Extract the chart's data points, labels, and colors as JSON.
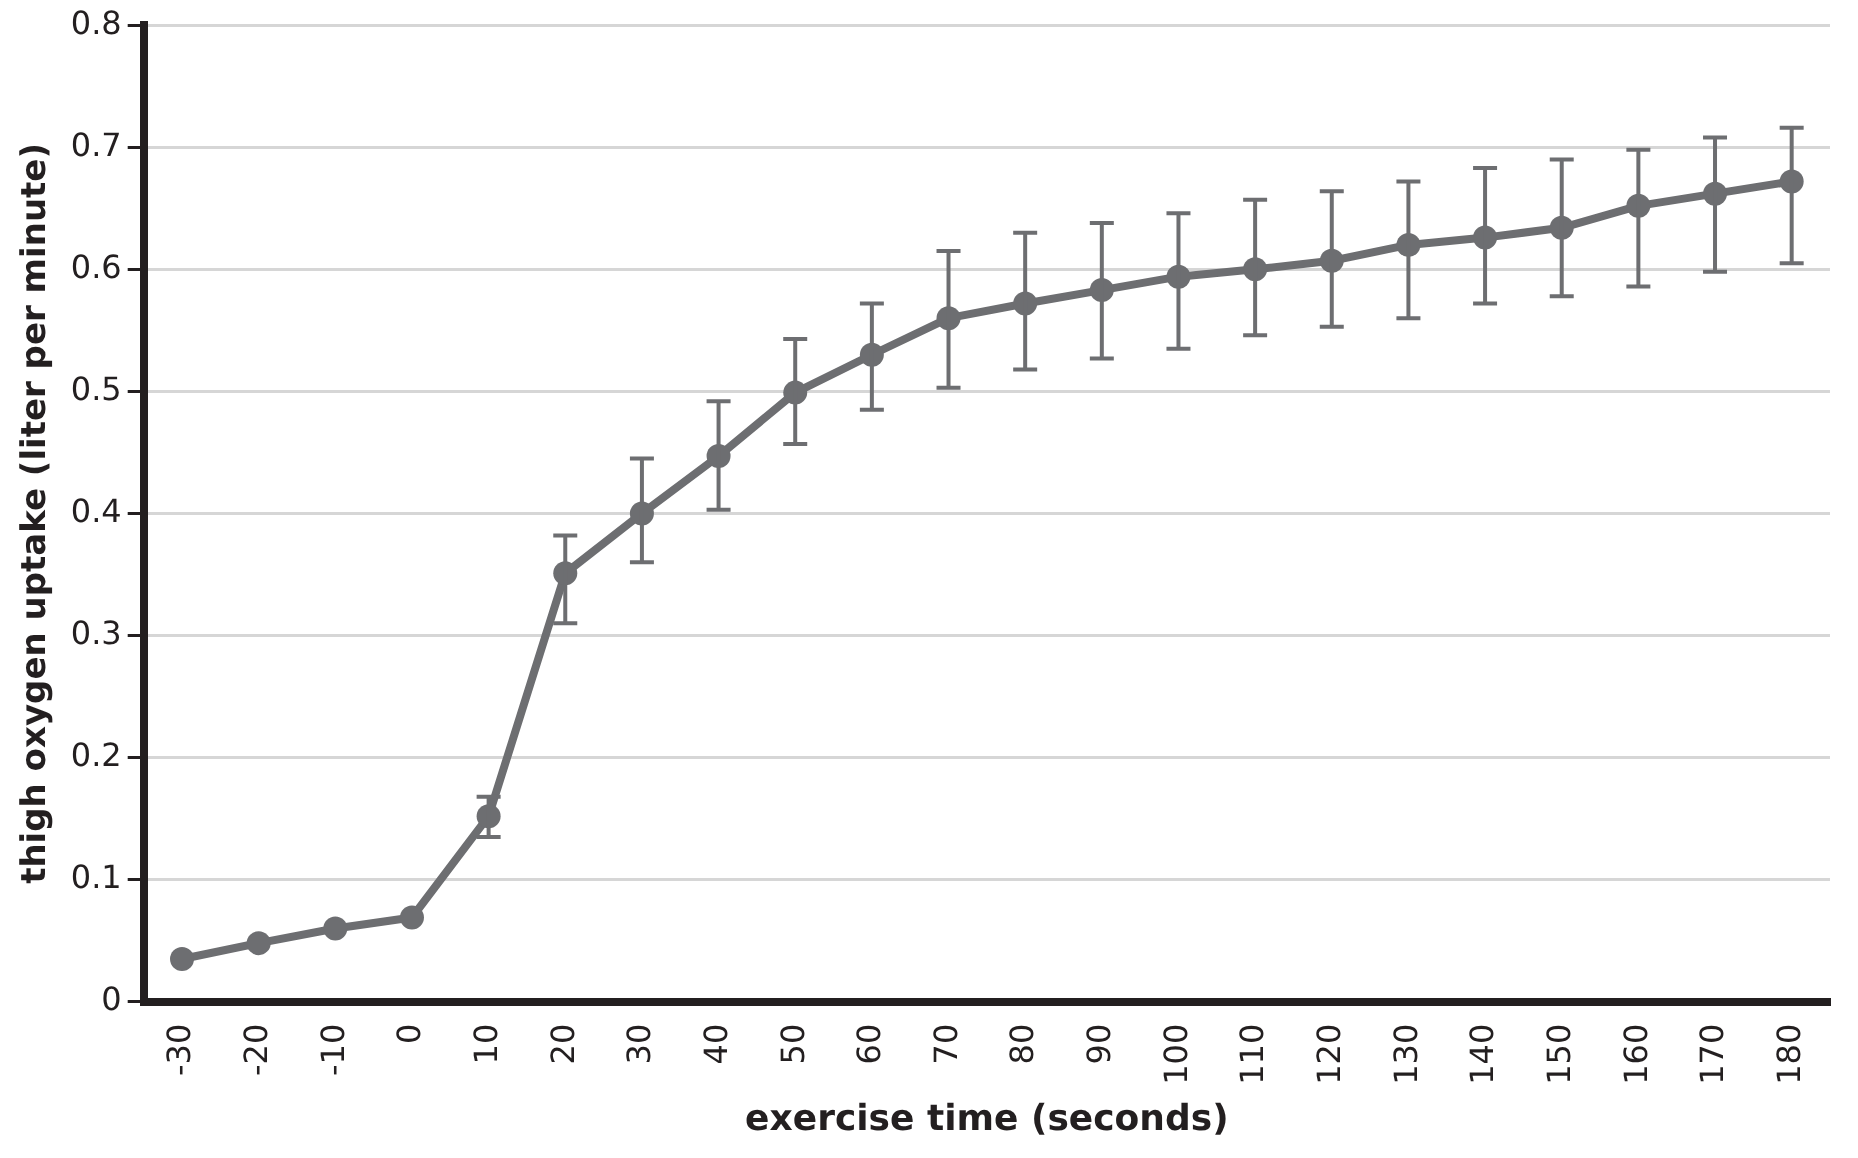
{
  "chart_data": {
    "type": "line",
    "xlabel": "exercise time (seconds)",
    "ylabel": "thigh oxygen uptake (liter per minute)",
    "categories": [
      "-30",
      "-20",
      "-10",
      "0",
      "10",
      "20",
      "30",
      "40",
      "50",
      "60",
      "70",
      "80",
      "90",
      "100",
      "110",
      "120",
      "130",
      "140",
      "150",
      "160",
      "170",
      "180"
    ],
    "series": [
      {
        "color": "#6d6e71",
        "values": [
          0.035,
          0.048,
          0.06,
          0.069,
          0.152,
          0.351,
          0.4,
          0.447,
          0.499,
          0.53,
          0.56,
          0.572,
          0.583,
          0.594,
          0.6,
          0.607,
          0.62,
          0.626,
          0.634,
          0.652,
          0.662,
          0.672
        ],
        "errors": [
          null,
          null,
          null,
          null,
          [
            0.135,
            0.168
          ],
          [
            0.31,
            0.382
          ],
          [
            0.36,
            0.445
          ],
          [
            0.403,
            0.492
          ],
          [
            0.457,
            0.543
          ],
          [
            0.485,
            0.572
          ],
          [
            0.503,
            0.615
          ],
          [
            0.518,
            0.63
          ],
          [
            0.527,
            0.638
          ],
          [
            0.535,
            0.646
          ],
          [
            0.546,
            0.657
          ],
          [
            0.553,
            0.664
          ],
          [
            0.56,
            0.672
          ],
          [
            0.572,
            0.683
          ],
          [
            0.578,
            0.69
          ],
          [
            0.586,
            0.698
          ],
          [
            0.598,
            0.708
          ],
          [
            0.605,
            0.716
          ]
        ]
      }
    ],
    "ylim": [
      0,
      0.8
    ],
    "yticks": [
      0,
      0.1,
      0.2,
      0.3,
      0.4,
      0.5,
      0.6,
      0.7,
      0.8
    ],
    "grid": "y",
    "legend": false,
    "marker": "circle",
    "line_style": "solid"
  }
}
